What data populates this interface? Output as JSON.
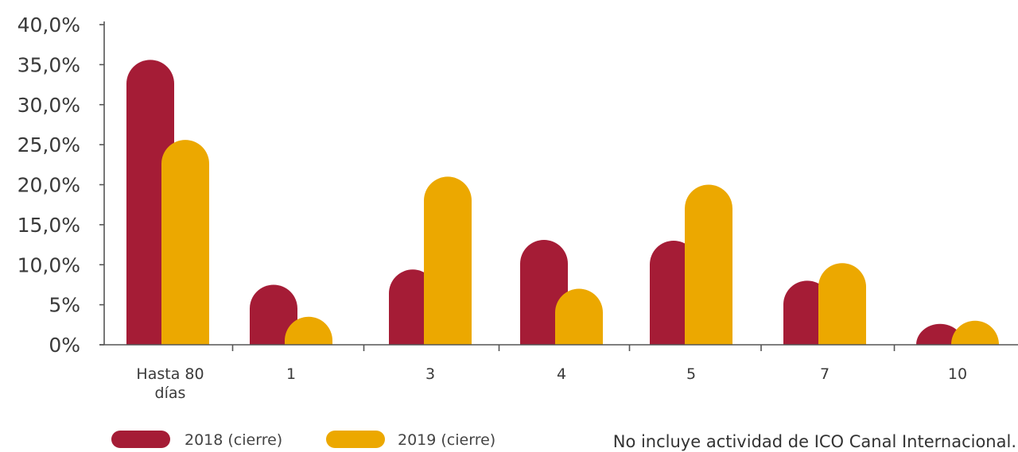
{
  "chart_data": {
    "type": "bar",
    "categories": [
      "Hasta 80 días",
      "1",
      "3",
      "4",
      "5",
      "7",
      "10"
    ],
    "category_lines": [
      [
        "Hasta 80",
        "días"
      ],
      [
        "1"
      ],
      [
        "3"
      ],
      [
        "4"
      ],
      [
        "5"
      ],
      [
        "7"
      ],
      [
        "10"
      ]
    ],
    "series": [
      {
        "name": "2018 (cierre)",
        "color": "#a51c36",
        "values": [
          35.6,
          7.5,
          9.4,
          13.1,
          13.0,
          8.0,
          2.6
        ]
      },
      {
        "name": "2019 (cierre)",
        "color": "#eca800",
        "values": [
          25.6,
          3.5,
          21.0,
          7.0,
          20.0,
          10.2,
          3.0
        ]
      }
    ],
    "ylim": [
      0,
      40
    ],
    "yticks": [
      0,
      5,
      10,
      15,
      20,
      25,
      30,
      35,
      40
    ],
    "ytick_labels": [
      "0%",
      "5%",
      "10,0%",
      "15,0%",
      "20,0%",
      "25,0%",
      "30,0%",
      "35,0%",
      "40,0%"
    ],
    "grid": false,
    "legend_position": "bottom-left",
    "note": "No incluye actividad de ICO Canal Internacional."
  }
}
